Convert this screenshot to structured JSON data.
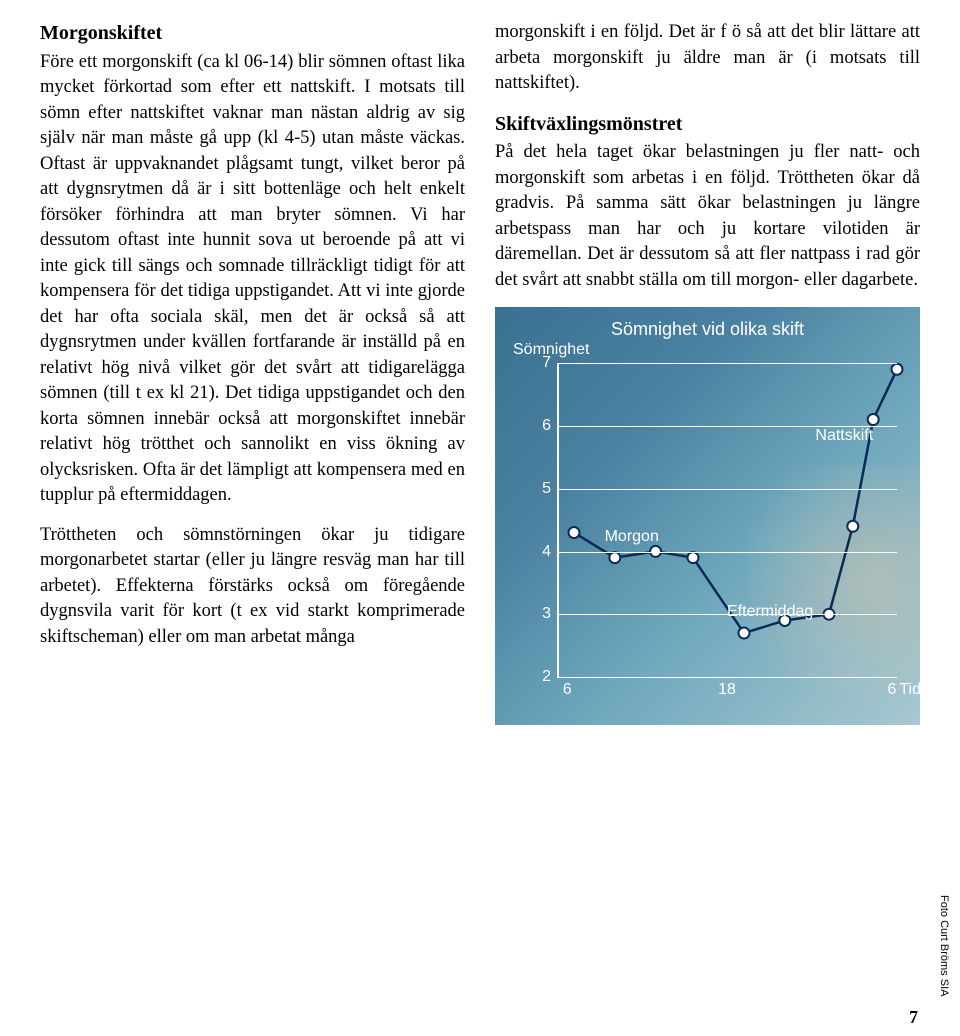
{
  "left": {
    "heading1": "Morgonskiftet",
    "para1": "Före ett morgonskift (ca kl 06-14) blir sömnen oftast lika mycket förkortad som efter ett nattskift. I motsats till sömn efter nattskiftet vaknar man nästan aldrig av sig själv när man måste gå upp (kl 4-5) utan måste väckas. Oftast är uppvaknandet plågsamt tungt, vilket beror på att dygnsrytmen då är i sitt bottenläge och helt enkelt försöker förhindra att man bryter sömnen. Vi har dessutom oftast inte hunnit sova ut beroende på att vi inte gick till sängs och somnade tillräckligt tidigt för att kompensera för det tidiga uppstigandet. Att vi inte gjorde det har ofta sociala skäl, men det är också så att dygnsrytmen under kvällen fortfarande är inställd på en relativt hög nivå vilket gör det svårt att tidigarelägga sömnen (till t ex kl 21). Det tidiga uppstigandet och den korta sömnen innebär också att morgonskiftet innebär relativt hög trötthet och sannolikt en viss ökning av olycksrisken. Ofta är det lämpligt att kompensera med en tupplur på eftermiddagen.",
    "para2": "Tröttheten och sömnstörningen ökar ju tidigare morgonarbetet startar (eller ju längre resväg man har till arbetet). Effekterna förstärks också om föregående dygnsvila varit för kort (t ex vid starkt komprimerade skiftscheman) eller om man arbetat många"
  },
  "right": {
    "para1": "morgonskift i en följd. Det är f ö så att det blir lättare att arbeta morgonskift ju äldre man är (i motsats till nattskiftet).",
    "heading2": "Skiftväxlingsmönstret",
    "para2": "På det hela taget ökar belastningen ju fler natt- och morgonskift som arbetas i en följd. Tröttheten ökar då gradvis. På samma sätt ökar belastningen ju längre arbetspass man har och ju kortare vilotiden är däremellan. Det är dessutom så att fler nattpass i rad gör det svårt att snabbt ställa om till morgon- eller dagarbete."
  },
  "chart": {
    "type": "line",
    "title": "Sömnighet vid olika skift",
    "ylabel": "Sömnighet",
    "xlabel": "Tid",
    "ylim": [
      2,
      7
    ],
    "ytick_step": 1,
    "xticks": [
      6,
      18,
      6
    ],
    "background_gradient": [
      "#3a7090",
      "#a8c8d0"
    ],
    "line_color": "#0a2a5a",
    "marker_fill": "#ffffff",
    "marker_stroke": "#0a2a5a",
    "series": {
      "Morgon": {
        "x": [
          0.05,
          0.17,
          0.29,
          0.4
        ],
        "y": [
          4.3,
          3.9,
          4.0,
          3.9
        ]
      },
      "Eftermiddag": {
        "x": [
          0.4,
          0.55,
          0.67,
          0.8
        ],
        "y": [
          3.9,
          2.7,
          2.9,
          3.0
        ]
      },
      "Nattskift": {
        "x": [
          0.8,
          0.87,
          0.93,
          1.0
        ],
        "y": [
          3.0,
          4.4,
          6.1,
          6.9
        ]
      }
    },
    "series_label_pos": {
      "Morgon": {
        "x": 0.14,
        "y": 4.25
      },
      "Eftermiddag": {
        "x": 0.5,
        "y": 3.05
      },
      "Nattskift": {
        "x": 0.76,
        "y": 5.85
      }
    }
  },
  "photo_credit": "Foto Curt Bröms SIA",
  "page_number": "7"
}
